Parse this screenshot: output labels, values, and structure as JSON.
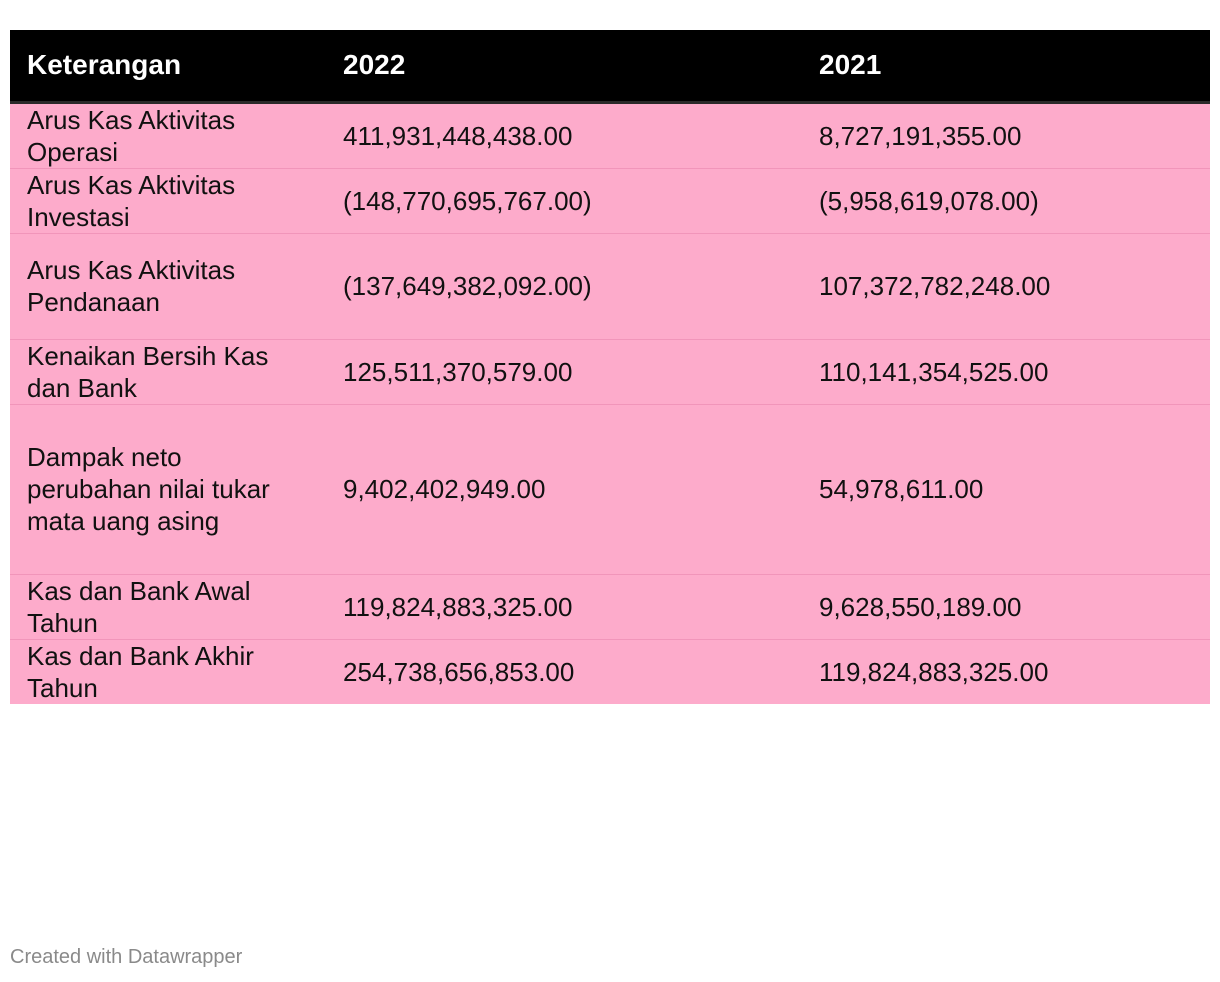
{
  "chart_data": {
    "type": "table",
    "columns": [
      "Keterangan",
      "2022",
      "2021"
    ],
    "rows": [
      [
        "Arus Kas Aktivitas Operasi",
        "411,931,448,438.00",
        "8,727,191,355.00"
      ],
      [
        "Arus Kas Aktivitas Investasi",
        "(148,770,695,767.00)",
        "(5,958,619,078.00)"
      ],
      [
        "Arus Kas Aktivitas Pendanaan",
        "(137,649,382,092.00)",
        "107,372,782,248.00"
      ],
      [
        "Kenaikan Bersih Kas dan Bank",
        "125,511,370,579.00",
        "110,141,354,525.00"
      ],
      [
        "Dampak neto perubahan nilai tukar mata uang asing",
        "9,402,402,949.00",
        "54,978,611.00"
      ],
      [
        "Kas dan Bank Awal Tahun",
        "119,824,883,325.00",
        "9,628,550,189.00"
      ],
      [
        "Kas dan Bank Akhir Tahun",
        "254,738,656,853.00",
        "119,824,883,325.00"
      ]
    ]
  },
  "footer": {
    "credit": "Created with Datawrapper"
  },
  "colors": {
    "header_bg": "#000000",
    "header_text": "#ffffff",
    "row_bg": "#fdabcb",
    "row_divider": "#f195ba",
    "footer_text": "#8a8a8a"
  }
}
